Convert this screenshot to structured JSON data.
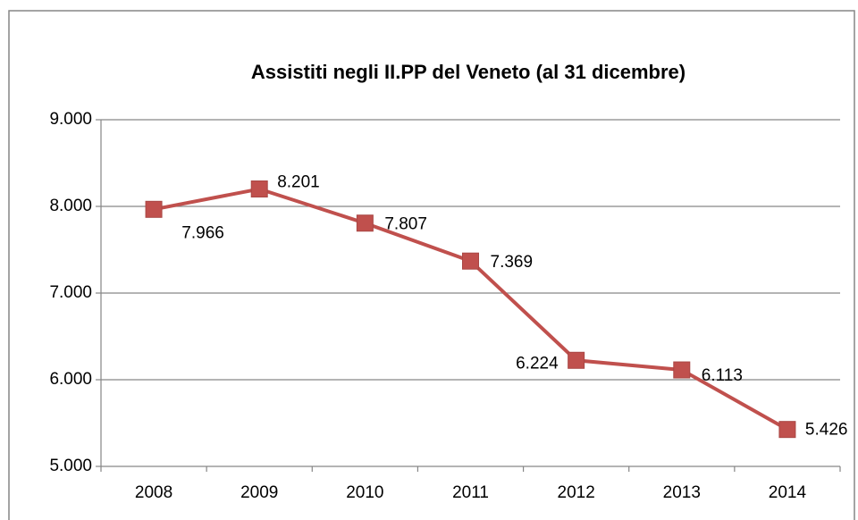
{
  "chart_data": {
    "type": "line",
    "title": "Assistiti negli II.PP del Veneto (al 31 dicembre)",
    "categories": [
      "2008",
      "2009",
      "2010",
      "2011",
      "2012",
      "2013",
      "2014"
    ],
    "series": [
      {
        "color": "#c0504d",
        "values": [
          7966,
          8201,
          7807,
          7369,
          6224,
          6113,
          5426
        ],
        "value_labels": [
          "7.966",
          "8.201",
          "7.807",
          "7.369",
          "6.224",
          "6.113",
          "5.426"
        ]
      }
    ],
    "ylim": [
      5000,
      9000
    ],
    "yticks": [
      {
        "value": 5000,
        "label": "5.000"
      },
      {
        "value": 6000,
        "label": "6.000"
      },
      {
        "value": 7000,
        "label": "7.000"
      },
      {
        "value": 8000,
        "label": "8.000"
      },
      {
        "value": 9000,
        "label": "9.000"
      }
    ],
    "grid": true
  }
}
